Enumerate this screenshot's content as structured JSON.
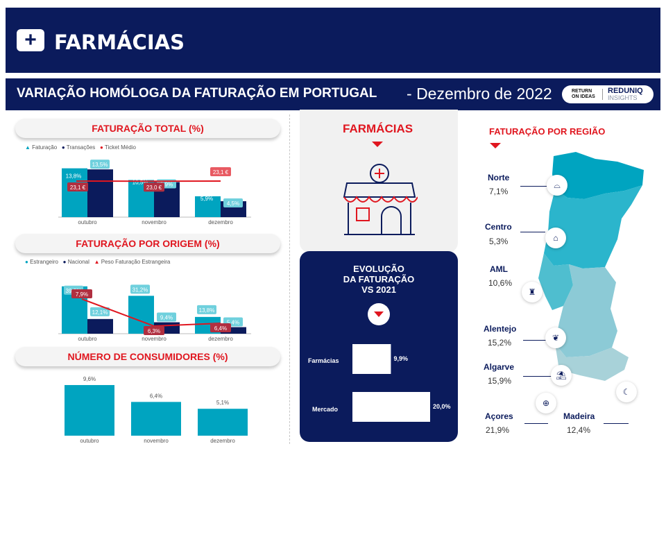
{
  "header": {
    "title": "FARMÁCIAS",
    "icon": "medical-kit-icon"
  },
  "subheader": {
    "title": "VARIAÇÃO HOMÓLOGA DA FATURAÇÃO EM PORTUGAL",
    "separator": "-",
    "date": "Dezembro de 2022",
    "logo_left": "RETURN ON IDEAS",
    "logo_right_top": "REDUNIQ",
    "logo_right_bottom": "INSIGHTS"
  },
  "colors": {
    "navy": "#0b1b5c",
    "teal": "#00a4c0",
    "red": "#e0161f",
    "light_teal": "#6fd0dd"
  },
  "chart_data": [
    {
      "id": "faturacao_total",
      "type": "bar",
      "title": "FATURAÇÃO TOTAL (%)",
      "categories": [
        "outubro",
        "novembro",
        "dezembro"
      ],
      "series": [
        {
          "name": "Faturação",
          "values": [
            13.8,
            10.5,
            5.9
          ],
          "labels": [
            "13,8%",
            "10,5%",
            "5,9%"
          ]
        },
        {
          "name": "Transações",
          "values": [
            13.5,
            9.9,
            4.5
          ],
          "labels": [
            "13,5%",
            "9,9%",
            "4,5%"
          ]
        }
      ],
      "line": {
        "name": "Ticket Médio",
        "values": [
          23.1,
          23.0,
          23.1
        ],
        "labels": [
          "23,1 €",
          "23,0 €",
          "23,1 €"
        ]
      }
    },
    {
      "id": "faturacao_origem",
      "type": "bar",
      "title": "FATURAÇÃO POR ORIGEM (%)",
      "categories": [
        "outubro",
        "novembro",
        "dezembro"
      ],
      "series": [
        {
          "name": "Estrangeiro",
          "values": [
            39.0,
            31.2,
            13.8
          ],
          "labels": [
            "39,0%",
            "31,2%",
            "13,8%"
          ]
        },
        {
          "name": "Nacional",
          "values": [
            12.1,
            9.4,
            5.4
          ],
          "labels": [
            "12,1%",
            "9,4%",
            "5,4%"
          ]
        }
      ],
      "line": {
        "name": "Peso Faturação Estrangeira",
        "values": [
          7.9,
          6.3,
          6.4
        ],
        "labels": [
          "7,9%",
          "6,3%",
          "6,4%"
        ]
      }
    },
    {
      "id": "consumidores",
      "type": "bar",
      "title": "NÚMERO DE CONSUMIDORES (%)",
      "categories": [
        "outubro",
        "novembro",
        "dezembro"
      ],
      "series": [
        {
          "name": "Consumidores",
          "values": [
            9.6,
            6.4,
            5.1
          ],
          "labels": [
            "9,6%",
            "6,4%",
            "5,1%"
          ]
        }
      ]
    },
    {
      "id": "evolucao",
      "type": "bar",
      "title": "EVOLUÇÃO DA FATURAÇÃO VS 2021",
      "title_lines": [
        "EVOLUÇÃO",
        "DA FATURAÇÃO",
        "VS 2021"
      ],
      "categories": [
        "Farmácias",
        "Mercado"
      ],
      "values": [
        9.9,
        20.0
      ],
      "labels": [
        "9,9%",
        "20,0%"
      ]
    },
    {
      "id": "regiao",
      "type": "table",
      "title": "FATURAÇÃO POR REGIÃO",
      "rows": [
        {
          "region": "Norte",
          "value": "7,1%",
          "icon": "bridge-icon"
        },
        {
          "region": "Centro",
          "value": "5,3%",
          "icon": "university-icon"
        },
        {
          "region": "AML",
          "value": "10,6%",
          "icon": "tower-icon"
        },
        {
          "region": "Alentejo",
          "value": "15,2%",
          "icon": "vineyard-icon"
        },
        {
          "region": "Algarve",
          "value": "15,9%",
          "icon": "beach-chair-icon"
        },
        {
          "region": "Açores",
          "value": "21,9%",
          "icon": "pineapple-icon"
        },
        {
          "region": "Madeira",
          "value": "12,4%",
          "icon": "banana-icon"
        }
      ]
    }
  ],
  "mid": {
    "title": "FARMÁCIAS",
    "icon": "pharmacy-store-icon"
  }
}
